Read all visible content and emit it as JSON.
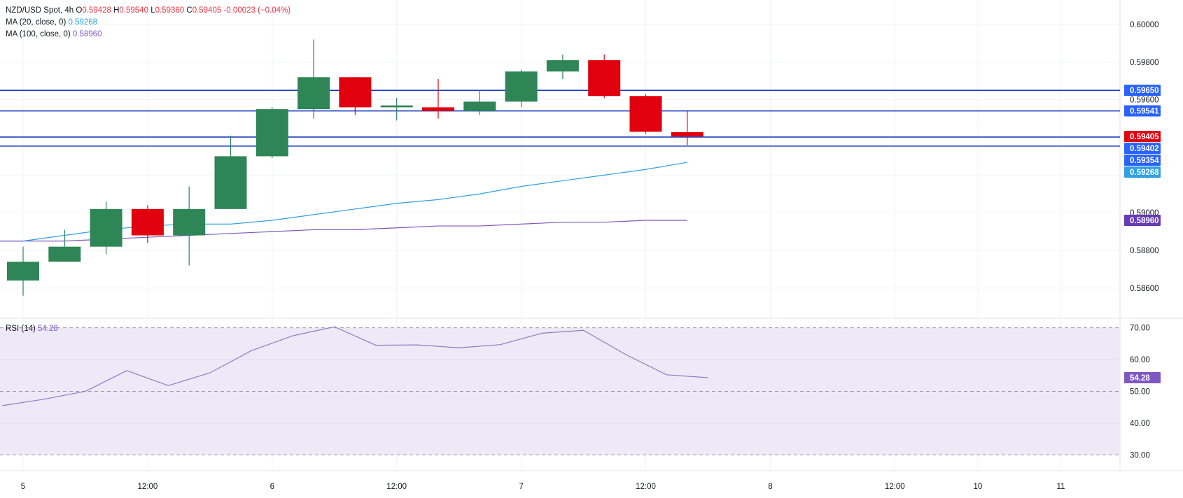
{
  "header": {
    "symbol": "NZD/USD Spot, 4h",
    "o_label": "O",
    "o_value": "0.59428",
    "h_label": "H",
    "h_value": "0.59540",
    "l_label": "L",
    "l_value": "0.59360",
    "c_label": "C",
    "c_value": "0.59405",
    "change": "-0.00023 (−0.04%)"
  },
  "indicators": {
    "ma20_label": "MA (20, close, 0)",
    "ma20_value": "0.59268",
    "ma100_label": "MA (100, close, 0)",
    "ma100_value": "0.58960",
    "rsi_label": "RSI (14)",
    "rsi_value": "54.28"
  },
  "colors": {
    "up": "#2e8556",
    "down": "#e0000e",
    "ma20": "#2ea0e6",
    "ma100": "#7e57c2",
    "hline": "#1b3cc2",
    "rsi_line": "#8e7cc3",
    "rsi_band": "#ede9f7",
    "badge_blue": "#2962ff",
    "badge_red": "#e0000e",
    "badge_purple": "#673ab7"
  },
  "chart_data": [
    {
      "type": "candlestick",
      "title": "NZD/USD Spot, 4h",
      "ylim": [
        0.5844,
        0.601
      ],
      "price_ticks": [
        "0.60000",
        "0.59800",
        "0.59600",
        "0.59200",
        "0.59000",
        "0.58800",
        "0.58600"
      ],
      "x_ticks": [
        {
          "index": 0,
          "label": "5"
        },
        {
          "index": 3,
          "label": "12:00"
        },
        {
          "index": 6,
          "label": "6"
        },
        {
          "index": 9,
          "label": "12:00"
        },
        {
          "index": 12,
          "label": "7"
        },
        {
          "index": 15,
          "label": "12:00"
        },
        {
          "index": 18,
          "label": "8"
        },
        {
          "index": 21,
          "label": "12:00"
        },
        {
          "index": 23,
          "label": "10"
        },
        {
          "index": 25,
          "label": "11"
        }
      ],
      "candles": [
        {
          "o": 0.5864,
          "h": 0.5882,
          "l": 0.5856,
          "c": 0.5874
        },
        {
          "o": 0.5874,
          "h": 0.5891,
          "l": 0.5874,
          "c": 0.5882
        },
        {
          "o": 0.5882,
          "h": 0.5906,
          "l": 0.5878,
          "c": 0.5902
        },
        {
          "o": 0.5902,
          "h": 0.5904,
          "l": 0.5884,
          "c": 0.5888
        },
        {
          "o": 0.5888,
          "h": 0.5914,
          "l": 0.5872,
          "c": 0.5902
        },
        {
          "o": 0.5902,
          "h": 0.5941,
          "l": 0.5902,
          "c": 0.593
        },
        {
          "o": 0.593,
          "h": 0.5956,
          "l": 0.5929,
          "c": 0.5955
        },
        {
          "o": 0.5955,
          "h": 0.5992,
          "l": 0.595,
          "c": 0.5972
        },
        {
          "o": 0.5972,
          "h": 0.5972,
          "l": 0.5952,
          "c": 0.5956
        },
        {
          "o": 0.5956,
          "h": 0.5961,
          "l": 0.5949,
          "c": 0.5957
        },
        {
          "o": 0.5956,
          "h": 0.5971,
          "l": 0.595,
          "c": 0.5954
        },
        {
          "o": 0.5954,
          "h": 0.5965,
          "l": 0.5952,
          "c": 0.5959
        },
        {
          "o": 0.5959,
          "h": 0.5976,
          "l": 0.5956,
          "c": 0.5975
        },
        {
          "o": 0.5975,
          "h": 0.5984,
          "l": 0.5971,
          "c": 0.5981
        },
        {
          "o": 0.5981,
          "h": 0.5984,
          "l": 0.5961,
          "c": 0.5962
        },
        {
          "o": 0.5962,
          "h": 0.5963,
          "l": 0.5942,
          "c": 0.5943
        },
        {
          "o": 0.59428,
          "h": 0.5954,
          "l": 0.5936,
          "c": 0.59405
        }
      ],
      "ma20": {
        "name": "MA (20, close, 0)",
        "values": [
          0.5885,
          0.5888,
          0.5891,
          0.5893,
          0.5894,
          0.5894,
          0.5896,
          0.5899,
          0.5902,
          0.5905,
          0.5907,
          0.591,
          0.5914,
          0.5917,
          0.592,
          0.5923,
          0.59268
        ]
      },
      "ma100": {
        "name": "MA (100, close, 0)",
        "values": [
          0.5885,
          0.5885,
          0.5886,
          0.5887,
          0.5888,
          0.5889,
          0.589,
          0.5891,
          0.5891,
          0.5892,
          0.5893,
          0.5893,
          0.5894,
          0.5895,
          0.5895,
          0.5896,
          0.5896
        ]
      },
      "horizontal_levels": [
        {
          "label": "0.59650",
          "value": 0.5965,
          "badge": "blue"
        },
        {
          "label": "0.59541",
          "value": 0.59541,
          "badge": "blue"
        },
        {
          "label": "0.59402",
          "value": 0.59402,
          "badge": "blue"
        },
        {
          "label": "0.59354",
          "value": 0.59354,
          "badge": "blue"
        }
      ],
      "last_price": {
        "label": "0.59405",
        "value": 0.59405
      },
      "ma20_badge": {
        "label": "0.59268",
        "value": 0.59268
      },
      "ma100_badge": {
        "label": "0.58960",
        "value": 0.5896
      }
    },
    {
      "type": "line",
      "title": "RSI (14)",
      "ylim": [
        25,
        73
      ],
      "ticks": [
        "70.00",
        "60.00",
        "50.00",
        "40.00",
        "30.00"
      ],
      "bands": [
        30,
        50,
        70
      ],
      "x_start": -0.5,
      "values": [
        45.5,
        47.5,
        50,
        56.5,
        51.8,
        55.8,
        62.8,
        67.5,
        70.3,
        64.5,
        64.6,
        63.7,
        64.7,
        68.3,
        69.2,
        61.7,
        55.2,
        54.28
      ],
      "last_label": "54.28"
    }
  ]
}
